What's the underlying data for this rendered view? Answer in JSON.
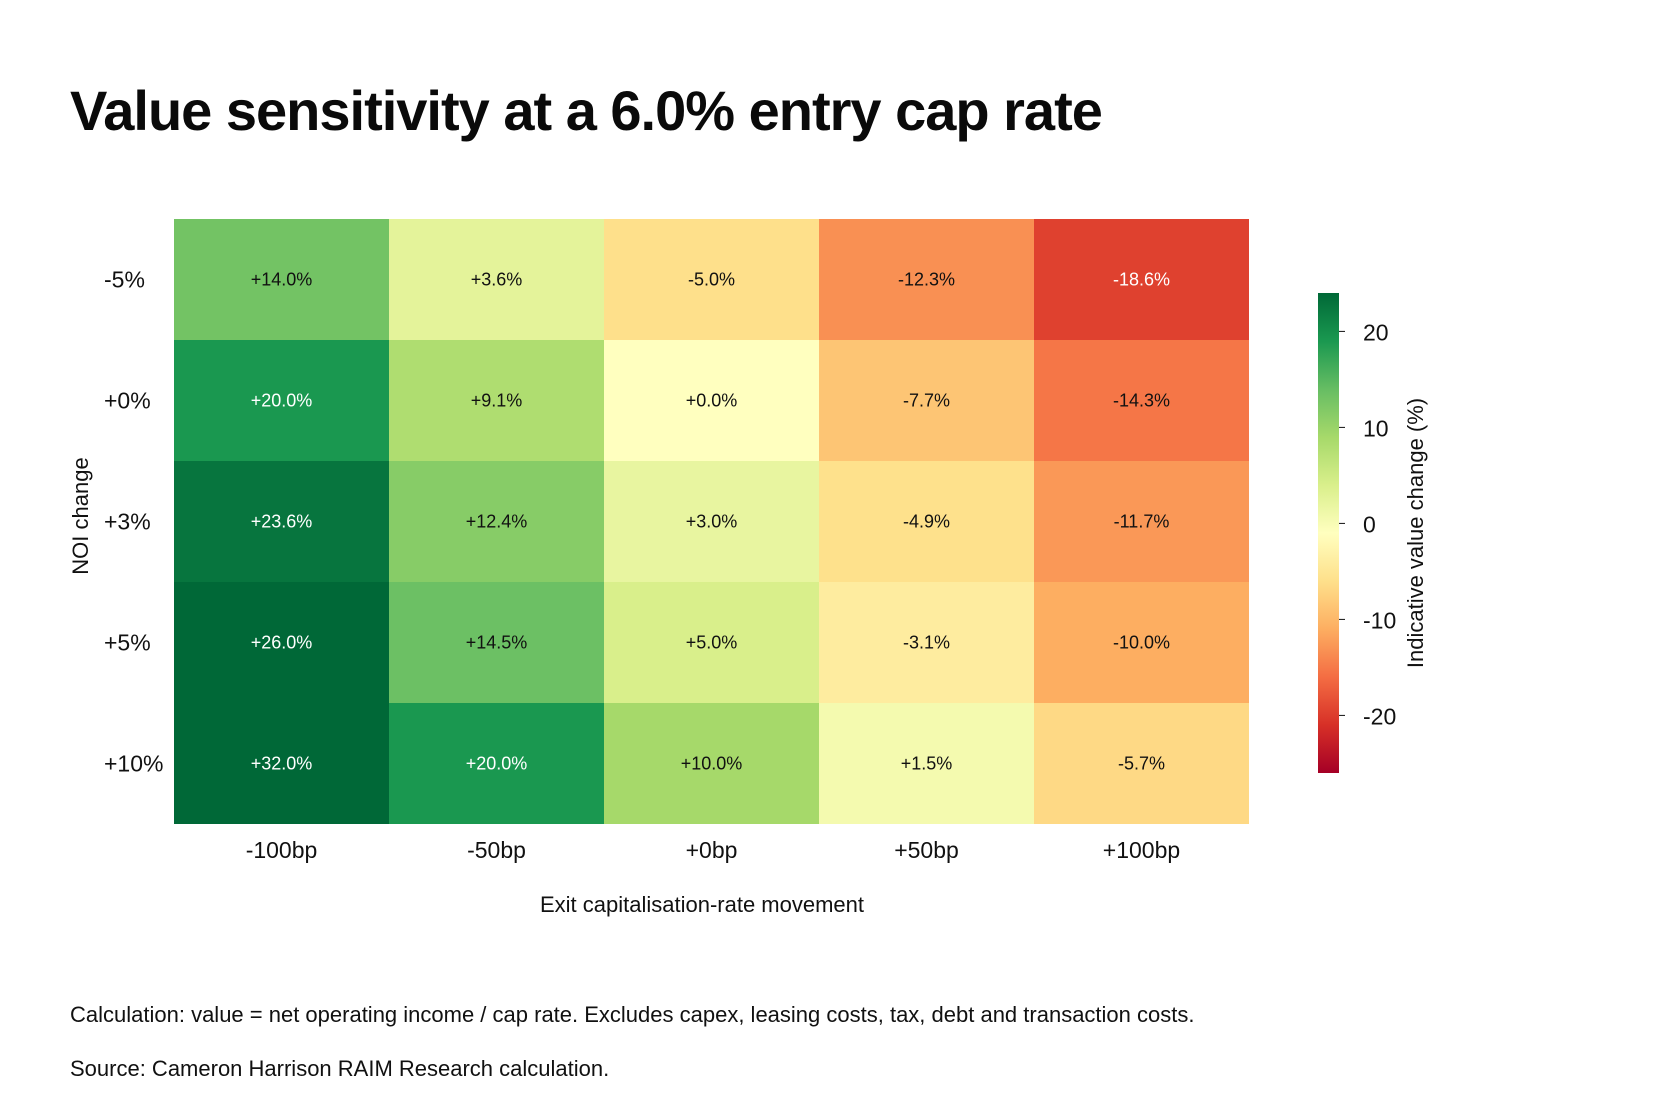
{
  "title": "Value sensitivity at a 6.0% entry cap rate",
  "notes": {
    "calculation": "Calculation: value = net operating income / cap rate. Excludes capex, leasing costs, tax, debt and transaction costs.",
    "source": "Source: Cameron Harrison RAIM Research calculation."
  },
  "chart_data": {
    "type": "heatmap",
    "title": "Value sensitivity at a 6.0% entry cap rate",
    "xlabel": "Exit capitalisation-rate movement",
    "ylabel": "NOI change",
    "x_categories": [
      "-100bp",
      "-50bp",
      "+0bp",
      "+50bp",
      "+100bp"
    ],
    "y_categories": [
      "-5%",
      "+0%",
      "+3%",
      "+5%",
      "+10%"
    ],
    "values": [
      [
        14.0,
        3.6,
        -5.0,
        -12.3,
        -18.6
      ],
      [
        20.0,
        9.1,
        0.0,
        -7.7,
        -14.3
      ],
      [
        23.6,
        12.4,
        3.0,
        -4.9,
        -11.7
      ],
      [
        26.0,
        14.5,
        5.0,
        -3.1,
        -10.0
      ],
      [
        32.0,
        20.0,
        10.0,
        1.5,
        -5.7
      ]
    ],
    "cell_labels": [
      [
        "+14.0%",
        "+3.6%",
        "-5.0%",
        "-12.3%",
        "-18.6%"
      ],
      [
        "+20.0%",
        "+9.1%",
        "+0.0%",
        "-7.7%",
        "-14.3%"
      ],
      [
        "+23.6%",
        "+12.4%",
        "+3.0%",
        "-4.9%",
        "-11.7%"
      ],
      [
        "+26.0%",
        "+14.5%",
        "+5.0%",
        "-3.1%",
        "-10.0%"
      ],
      [
        "+32.0%",
        "+20.0%",
        "+10.0%",
        "+1.5%",
        "-5.7%"
      ]
    ],
    "colormap": "RdYlGn",
    "color_range": [
      -25,
      25
    ],
    "colorbar": {
      "label": "Indicative value change (%)",
      "ticks": [
        20,
        10,
        0,
        -10,
        -20
      ],
      "tick_labels": [
        "20",
        "10",
        "0",
        "-10",
        "-20"
      ],
      "range": [
        -26,
        24
      ],
      "placement": "right"
    },
    "grid": false,
    "legend": "none"
  }
}
